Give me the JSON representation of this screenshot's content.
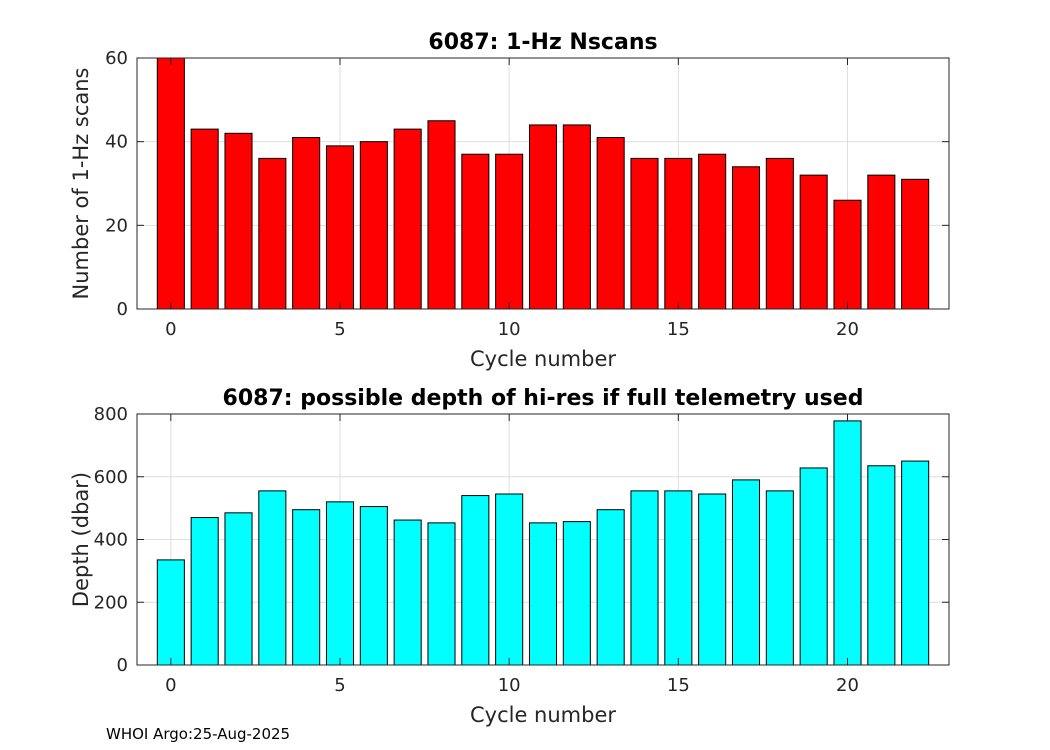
{
  "footer": {
    "text": "WHOI Argo:25-Aug-2025"
  },
  "chart_data": [
    {
      "type": "bar",
      "title": "6087: 1-Hz Nscans",
      "xlabel": "Cycle number",
      "ylabel": "Number of 1-Hz scans",
      "x": [
        0,
        1,
        2,
        3,
        4,
        5,
        6,
        7,
        8,
        9,
        10,
        11,
        12,
        13,
        14,
        15,
        16,
        17,
        18,
        19,
        20,
        21,
        22
      ],
      "values": [
        60,
        43,
        42,
        36,
        41,
        39,
        40,
        43,
        45,
        37,
        37,
        44,
        44,
        41,
        36,
        36,
        37,
        34,
        36,
        32,
        26,
        32,
        31
      ],
      "xlim": [
        -1,
        23
      ],
      "ylim": [
        0,
        60
      ],
      "xticks": [
        0,
        5,
        10,
        15,
        20
      ],
      "yticks": [
        0,
        20,
        40,
        60
      ],
      "grid": true,
      "bar_color": "#ff0000"
    },
    {
      "type": "bar",
      "title": "6087: possible depth of hi-res if full telemetry used",
      "xlabel": "Cycle number",
      "ylabel": "Depth (dbar)",
      "x": [
        0,
        1,
        2,
        3,
        4,
        5,
        6,
        7,
        8,
        9,
        10,
        11,
        12,
        13,
        14,
        15,
        16,
        17,
        18,
        19,
        20,
        21,
        22
      ],
      "values": [
        335,
        470,
        485,
        555,
        495,
        520,
        505,
        462,
        453,
        540,
        545,
        453,
        457,
        495,
        555,
        555,
        545,
        590,
        555,
        628,
        778,
        635,
        650
      ],
      "xlim": [
        -1,
        23
      ],
      "ylim": [
        0,
        800
      ],
      "xticks": [
        0,
        5,
        10,
        15,
        20
      ],
      "yticks": [
        0,
        200,
        400,
        600,
        800
      ],
      "grid": true,
      "bar_color": "#00ffff"
    }
  ]
}
